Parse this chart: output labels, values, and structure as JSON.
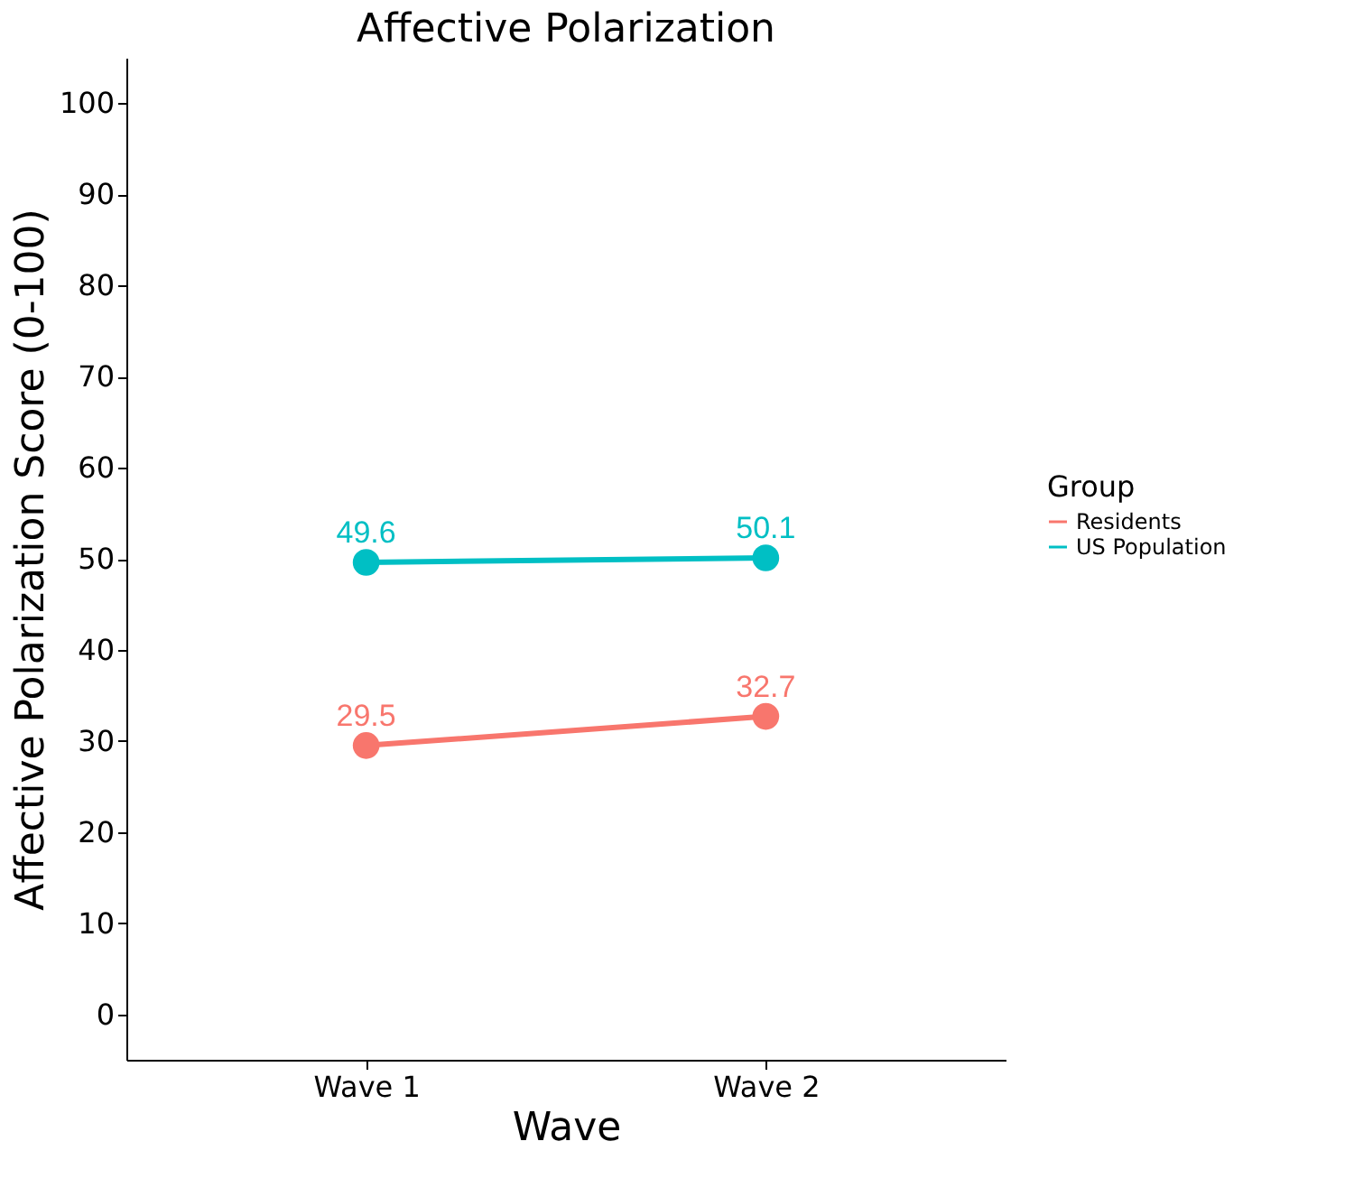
{
  "chart_data": {
    "type": "line",
    "title": "Affective Polarization",
    "xlabel": "Wave",
    "ylabel": "Affective Polarization Score (0-100)",
    "legend_title": "Group",
    "categories": [
      "Wave 1",
      "Wave 2"
    ],
    "series": [
      {
        "name": "Residents",
        "color": "#f8766d",
        "values": [
          29.5,
          32.7
        ]
      },
      {
        "name": "US Population",
        "color": "#00bfc4",
        "values": [
          49.6,
          50.1
        ]
      }
    ],
    "ylim": [
      -5,
      105
    ],
    "yticks": [
      0,
      10,
      20,
      30,
      40,
      50,
      60,
      70,
      80,
      90,
      100
    ],
    "grid": false,
    "legend": "right",
    "marker": "circle",
    "line_style": "solid",
    "data_labels": true
  }
}
